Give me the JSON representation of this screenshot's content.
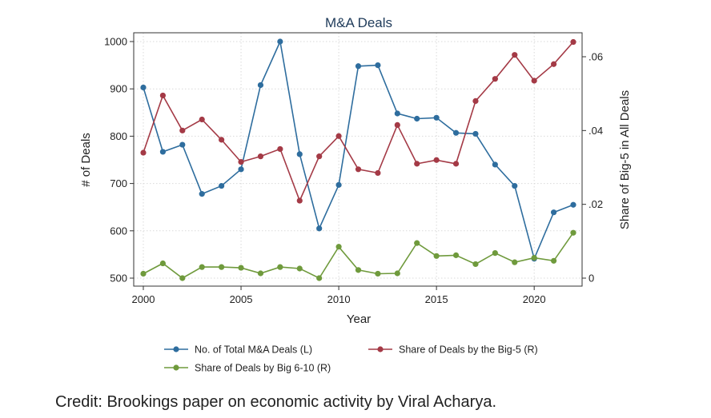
{
  "chart_data": {
    "type": "line",
    "title": "M&A Deals",
    "xlabel": "Year",
    "ylabel_left": "# of Deals",
    "ylabel_right": "Share of Big-5 in All Deals",
    "x": [
      2000,
      2001,
      2002,
      2003,
      2004,
      2005,
      2006,
      2007,
      2008,
      2009,
      2010,
      2011,
      2012,
      2013,
      2014,
      2015,
      2016,
      2017,
      2018,
      2019,
      2020,
      2021,
      2022
    ],
    "xlim": [
      2000,
      2022
    ],
    "xticks": [
      2000,
      2005,
      2010,
      2015,
      2020
    ],
    "xtick_labels": [
      "2000",
      "2005",
      "2010",
      "2015",
      "2020"
    ],
    "ylim_left": [
      500,
      1000
    ],
    "yticks_left": [
      500,
      600,
      700,
      800,
      900,
      1000
    ],
    "ytick_labels_left": [
      "500",
      "600",
      "700",
      "800",
      "900",
      "1000"
    ],
    "ylim_right": [
      0,
      0.06
    ],
    "yticks_right": [
      0,
      0.02,
      0.04,
      0.06
    ],
    "ytick_labels_right": [
      "0",
      ".02",
      ".04",
      ".06"
    ],
    "grid": true,
    "legend_position": "bottom",
    "series": [
      {
        "name": "No. of Total M&A Deals (L)",
        "axis": "left",
        "color": "#2e6d9e",
        "values": [
          903,
          767,
          782,
          678,
          695,
          730,
          908,
          1000,
          762,
          605,
          697,
          948,
          950,
          848,
          837,
          839,
          807,
          805,
          740,
          695,
          541,
          639,
          655
        ]
      },
      {
        "name": "Share of Deals by the Big-5 (R)",
        "axis": "right",
        "color": "#a43a46",
        "values": [
          0.034,
          0.0495,
          0.04,
          0.043,
          0.0375,
          0.0315,
          0.033,
          0.035,
          0.021,
          0.033,
          0.0385,
          0.0295,
          0.0285,
          0.0415,
          0.031,
          0.032,
          0.031,
          0.048,
          0.054,
          0.0605,
          0.0535,
          0.058,
          0.064
        ]
      },
      {
        "name": "Share of Deals by Big 6-10 (R)",
        "axis": "right",
        "color": "#6f9a3c",
        "values": [
          0.0012,
          0.004,
          0.0,
          0.003,
          0.003,
          0.0028,
          0.0013,
          0.003,
          0.0026,
          0.0,
          0.0085,
          0.0022,
          0.0012,
          0.0013,
          0.0095,
          0.006,
          0.0062,
          0.0038,
          0.0068,
          0.0043,
          0.0055,
          0.0047,
          0.0123
        ]
      }
    ]
  },
  "credit": "Credit: Brookings paper on economic activity by Viral Acharya."
}
